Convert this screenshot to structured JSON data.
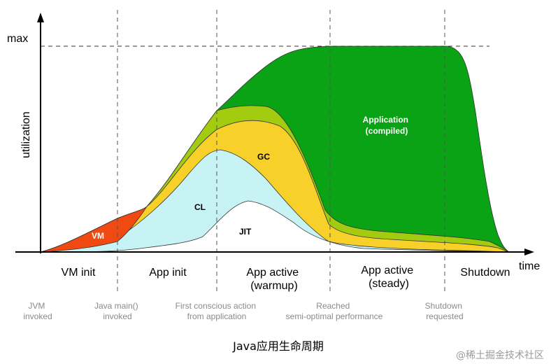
{
  "axes": {
    "y_label": "utilization",
    "y_max_label": "max",
    "x_label": "time"
  },
  "phases": [
    {
      "lines": [
        "VM init"
      ]
    },
    {
      "lines": [
        "App init"
      ]
    },
    {
      "lines": [
        "App active",
        "(warmup)"
      ]
    },
    {
      "lines": [
        "App active",
        "(steady)"
      ]
    },
    {
      "lines": [
        "Shutdown"
      ]
    }
  ],
  "events": [
    {
      "lines": [
        "JVM",
        "invoked"
      ]
    },
    {
      "lines": [
        "Java main()",
        "invoked"
      ]
    },
    {
      "lines": [
        "First conscious action",
        "from application"
      ]
    },
    {
      "lines": [
        "Reached",
        "semi-optimal performance"
      ]
    },
    {
      "lines": [
        "Shutdown",
        "requested"
      ]
    }
  ],
  "regions": [
    {
      "name": "vm",
      "label": "VM",
      "color": "#f04a12"
    },
    {
      "name": "cl",
      "label": "CL",
      "color": "#c7f3f5"
    },
    {
      "name": "gc",
      "label": "GC",
      "color": "#f7d12a"
    },
    {
      "name": "jit",
      "label": "JIT",
      "color": "#ffffff"
    },
    {
      "name": "compiled",
      "label_lines": [
        "Application",
        "(compiled)"
      ],
      "color": "#0aa315"
    },
    {
      "name": "upper-band",
      "color": "#a3cc10"
    }
  ],
  "caption": "Java应用生命周期",
  "watermark": "@稀土掘金技术社区"
}
